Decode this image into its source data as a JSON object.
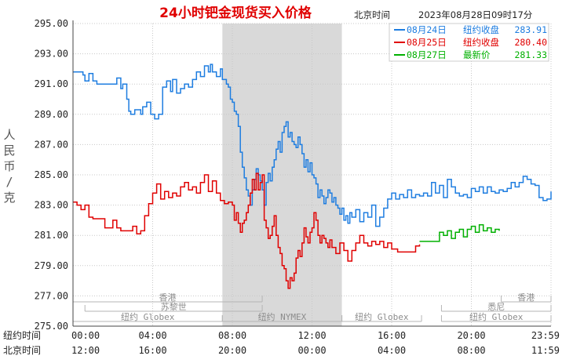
{
  "header": {
    "title": "24小时钯金现货买入价格",
    "timezone": "北京时间",
    "timestamp": "2023年08月28日09时17分"
  },
  "chart_data": {
    "type": "line",
    "title": "24小时钯金现货买入价格",
    "ylabel": "人民币/克",
    "ylim": [
      275,
      295
    ],
    "yticks": [
      275,
      277,
      279,
      281,
      283,
      285,
      287,
      289,
      291,
      293,
      295
    ],
    "ytick_labels": [
      "275.00",
      "277.00",
      "279.00",
      "281.00",
      "283.00",
      "285.00",
      "287.00",
      "289.00",
      "291.00",
      "293.00",
      "295.00"
    ],
    "x_range_hours": [
      0,
      24
    ],
    "x_rows": [
      {
        "label": "纽约时间",
        "ticks": [
          {
            "h": 0,
            "t": "00:00"
          },
          {
            "h": 4,
            "t": "04:00"
          },
          {
            "h": 8,
            "t": "08:00"
          },
          {
            "h": 12,
            "t": "12:00"
          },
          {
            "h": 16,
            "t": "16:00"
          },
          {
            "h": 20,
            "t": "20:00"
          },
          {
            "h": 24,
            "t": "23:59"
          }
        ]
      },
      {
        "label": "北京时间",
        "ticks": [
          {
            "h": 0,
            "t": "12:00"
          },
          {
            "h": 4,
            "t": "16:00"
          },
          {
            "h": 8,
            "t": "20:00"
          },
          {
            "h": 12,
            "t": "00:00"
          },
          {
            "h": 16,
            "t": "04:00"
          },
          {
            "h": 20,
            "t": "08:00"
          },
          {
            "h": 24,
            "t": "11:59"
          }
        ]
      }
    ],
    "shaded_session_hours": [
      7.5,
      13.5
    ],
    "grid": true,
    "legend_position": "top-right",
    "series": [
      {
        "name": "08月24日",
        "label": "纽约收盘",
        "value_text": "283.91",
        "color": "#1e7de0",
        "x": [
          0,
          0.3,
          0.5,
          0.6,
          0.8,
          1.0,
          1.2,
          1.5,
          1.7,
          2.0,
          2.2,
          2.4,
          2.5,
          2.7,
          2.8,
          2.9,
          3.1,
          3.4,
          3.5,
          3.7,
          3.9,
          4.1,
          4.3,
          4.5,
          4.7,
          4.9,
          5.0,
          5.2,
          5.4,
          5.6,
          5.8,
          6.0,
          6.2,
          6.4,
          6.6,
          6.8,
          6.9,
          7.0,
          7.2,
          7.4,
          7.5,
          7.7,
          7.8,
          7.9,
          8.0,
          8.1,
          8.2,
          8.3,
          8.4,
          8.5,
          8.6,
          8.7,
          8.8,
          8.9,
          9.0,
          9.1,
          9.2,
          9.3,
          9.4,
          9.5,
          9.6,
          9.7,
          9.8,
          9.9,
          10.0,
          10.1,
          10.2,
          10.3,
          10.4,
          10.5,
          10.6,
          10.7,
          10.8,
          10.9,
          11.0,
          11.1,
          11.2,
          11.3,
          11.4,
          11.5,
          11.6,
          11.7,
          11.8,
          11.9,
          12.0,
          12.1,
          12.2,
          12.3,
          12.4,
          12.5,
          12.6,
          12.7,
          12.8,
          12.9,
          13.0,
          13.1,
          13.2,
          13.3,
          13.4,
          13.5,
          13.6,
          13.7,
          13.8,
          13.9,
          14.0,
          14.2,
          14.4,
          14.6,
          14.8,
          15.0,
          15.2,
          15.4,
          15.6,
          15.8,
          16.0,
          16.2,
          16.4,
          16.6,
          16.8,
          17.0,
          17.2,
          17.4,
          17.6,
          17.8,
          18.0,
          18.2,
          18.4,
          18.6,
          18.8,
          19.0,
          19.2,
          19.4,
          19.6,
          19.8,
          20.0,
          20.2,
          20.4,
          20.6,
          20.8,
          21.0,
          21.2,
          21.4,
          21.6,
          21.8,
          22.0,
          22.2,
          22.4,
          22.6,
          22.8,
          23.0,
          23.2,
          23.4,
          23.6,
          23.8,
          24.0
        ],
        "y": [
          291.8,
          291.8,
          291.6,
          291.2,
          291.7,
          291.2,
          291.0,
          291.0,
          291.0,
          291.0,
          291.4,
          290.7,
          291.0,
          290.0,
          289.2,
          289.0,
          289.3,
          289.0,
          289.5,
          289.8,
          289.0,
          288.7,
          289.0,
          290.8,
          291.2,
          290.5,
          291.3,
          290.4,
          290.7,
          291.0,
          290.8,
          291.3,
          291.8,
          291.5,
          292.2,
          291.8,
          292.3,
          291.8,
          291.5,
          292.0,
          291.3,
          291.0,
          290.8,
          290.0,
          289.8,
          289.2,
          289.0,
          288.2,
          286.5,
          285.5,
          284.8,
          284.0,
          283.6,
          283.0,
          284.0,
          284.7,
          285.4,
          285.0,
          284.6,
          284.0,
          283.0,
          284.5,
          285.1,
          284.6,
          285.5,
          286.0,
          286.7,
          287.2,
          286.5,
          287.8,
          288.2,
          288.5,
          287.5,
          287.8,
          287.2,
          287.0,
          286.8,
          287.5,
          287.0,
          286.4,
          285.5,
          286.0,
          285.2,
          285.8,
          285.0,
          284.8,
          284.4,
          283.5,
          284.0,
          283.6,
          283.1,
          283.5,
          284.0,
          283.8,
          283.2,
          283.5,
          283.0,
          282.8,
          282.4,
          282.8,
          282.0,
          282.3,
          281.8,
          282.5,
          282.2,
          282.7,
          281.9,
          282.5,
          282.2,
          283.0,
          281.6,
          282.2,
          282.8,
          283.4,
          283.8,
          283.4,
          283.7,
          283.5,
          284.0,
          283.5,
          283.7,
          283.6,
          283.8,
          283.6,
          284.5,
          283.8,
          284.3,
          283.5,
          284.7,
          284.2,
          283.8,
          283.6,
          283.7,
          283.5,
          284.1,
          283.9,
          284.2,
          283.8,
          284.2,
          283.9,
          283.8,
          284.0,
          283.9,
          284.1,
          284.5,
          284.2,
          284.5,
          284.9,
          284.7,
          284.4,
          284.3,
          283.5,
          283.3,
          283.4,
          283.9
        ]
      },
      {
        "name": "08月25日",
        "label": "纽约收盘",
        "value_text": "280.40",
        "color": "#e00000",
        "x": [
          0,
          0.2,
          0.4,
          0.6,
          0.8,
          1.0,
          1.2,
          1.4,
          1.6,
          1.8,
          2.0,
          2.2,
          2.4,
          2.6,
          2.8,
          3.0,
          3.2,
          3.4,
          3.6,
          3.8,
          4.0,
          4.2,
          4.4,
          4.6,
          4.8,
          5.0,
          5.2,
          5.4,
          5.6,
          5.8,
          6.0,
          6.2,
          6.4,
          6.6,
          6.8,
          7.0,
          7.2,
          7.4,
          7.6,
          7.8,
          8.0,
          8.1,
          8.2,
          8.3,
          8.4,
          8.5,
          8.6,
          8.7,
          8.8,
          8.9,
          9.0,
          9.1,
          9.2,
          9.3,
          9.4,
          9.5,
          9.6,
          9.7,
          9.8,
          9.9,
          10.0,
          10.1,
          10.2,
          10.3,
          10.4,
          10.5,
          10.6,
          10.7,
          10.8,
          10.9,
          11.0,
          11.1,
          11.2,
          11.3,
          11.4,
          11.5,
          11.6,
          11.7,
          11.8,
          11.9,
          12.0,
          12.1,
          12.2,
          12.3,
          12.4,
          12.5,
          12.6,
          12.7,
          12.8,
          12.9,
          13.0,
          13.2,
          13.4,
          13.6,
          13.8,
          14.0,
          14.2,
          14.4,
          14.6,
          14.8,
          15.0,
          15.2,
          15.4,
          15.6,
          15.8,
          16.0,
          16.3,
          16.6,
          16.9,
          17.2,
          17.4
        ],
        "y": [
          283.2,
          283.0,
          282.7,
          283.0,
          282.2,
          282.1,
          282.1,
          282.1,
          281.5,
          281.5,
          282.0,
          281.5,
          281.3,
          281.3,
          281.3,
          281.6,
          281.1,
          281.3,
          282.3,
          283.1,
          283.8,
          284.4,
          283.4,
          283.9,
          283.5,
          283.8,
          283.6,
          284.2,
          284.5,
          284.0,
          284.2,
          283.8,
          284.5,
          285.0,
          283.9,
          284.6,
          283.8,
          283.3,
          283.1,
          283.2,
          283.0,
          282.0,
          282.5,
          281.8,
          281.2,
          281.8,
          282.0,
          282.5,
          283.0,
          283.8,
          284.7,
          284.0,
          285.1,
          284.0,
          284.5,
          285.0,
          282.0,
          281.5,
          280.8,
          281.0,
          281.6,
          282.3,
          281.0,
          280.2,
          279.8,
          279.0,
          278.8,
          278.0,
          277.5,
          278.2,
          278.0,
          278.5,
          279.5,
          280.0,
          279.6,
          280.5,
          281.5,
          280.9,
          280.5,
          281.2,
          281.5,
          282.5,
          282.0,
          281.0,
          280.5,
          281.0,
          280.8,
          280.5,
          280.2,
          280.7,
          280.2,
          279.8,
          280.5,
          280.0,
          279.3,
          280.0,
          280.5,
          281.0,
          280.5,
          280.3,
          280.6,
          280.4,
          280.6,
          280.2,
          280.5,
          280.1,
          279.9,
          279.9,
          279.9,
          280.3,
          280.4
        ]
      },
      {
        "name": "08月27日",
        "label": "最新价",
        "value_text": "281.33",
        "color": "#00b000",
        "x": [
          17.4,
          17.6,
          17.8,
          18.0,
          18.2,
          18.4,
          18.6,
          18.8,
          19.0,
          19.2,
          19.4,
          19.6,
          19.8,
          20.0,
          20.2,
          20.4,
          20.6,
          20.8,
          21.0,
          21.2,
          21.4
        ],
        "y": [
          280.6,
          280.6,
          280.6,
          280.6,
          280.6,
          281.2,
          281.0,
          281.3,
          280.8,
          281.2,
          281.4,
          280.9,
          281.4,
          281.6,
          281.2,
          281.7,
          281.3,
          281.5,
          281.2,
          281.4,
          281.3
        ]
      }
    ],
    "session_bands": [
      {
        "label": "香港",
        "start_h": 0,
        "end_h": 9.5,
        "row": 0
      },
      {
        "label": "苏黎世",
        "start_h": 0.6,
        "end_h": 9.5,
        "row": 1
      },
      {
        "label": "纽约 Globex",
        "start_h": 0,
        "end_h": 7.5,
        "row": 2
      },
      {
        "label": "纽约 NYMEX",
        "start_h": 7.5,
        "end_h": 13.5,
        "row": 2
      },
      {
        "label": "纽约 Globex",
        "start_h": 13.5,
        "end_h": 17.5,
        "row": 2
      },
      {
        "label": "香港",
        "start_h": 21.5,
        "end_h": 24,
        "row": 0
      },
      {
        "label": "悉尼",
        "start_h": 18.5,
        "end_h": 24,
        "row": 1
      },
      {
        "label": "纽约 Globex",
        "start_h": 18.5,
        "end_h": 24,
        "row": 2
      }
    ]
  }
}
